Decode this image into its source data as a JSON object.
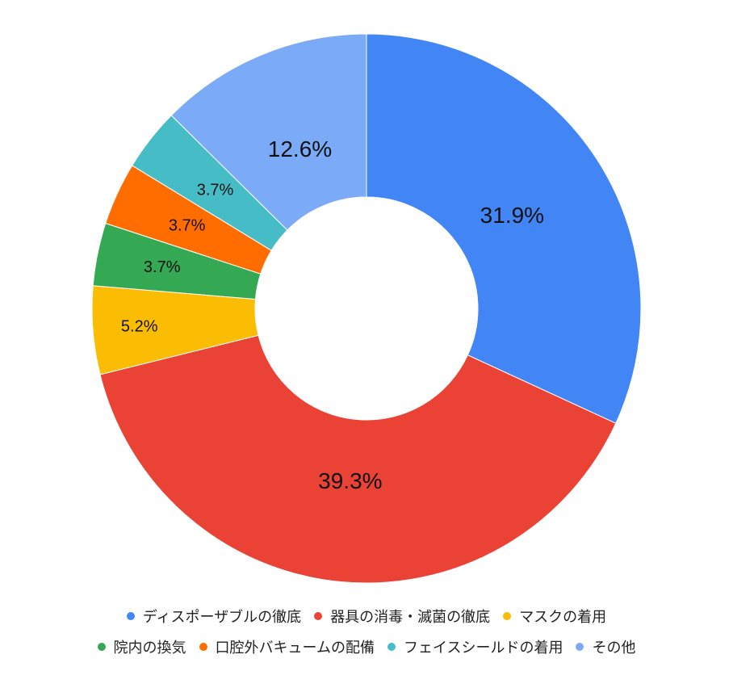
{
  "chart_data": {
    "type": "pie",
    "donut": true,
    "title": "",
    "legend_position": "bottom",
    "categories": [
      "ディスポーザブルの徹底",
      "器具の消毒・滅菌の徹底",
      "マスクの着用",
      "院内の換気",
      "口腔外バキュームの配備",
      "フェイスシールドの着用",
      "その他"
    ],
    "values": [
      31.9,
      39.3,
      5.2,
      3.7,
      3.7,
      3.7,
      12.6
    ],
    "labels": [
      "31.9%",
      "39.3%",
      "5.2%",
      "3.7%",
      "3.7%",
      "3.7%",
      "12.6%"
    ],
    "colors": [
      "#4285f4",
      "#ea4335",
      "#fbbc04",
      "#34a853",
      "#ff6d01",
      "#46bdc6",
      "#7baaf7"
    ],
    "legend_rows": [
      [
        0,
        1,
        2
      ],
      [
        3,
        4,
        5,
        6
      ]
    ]
  }
}
